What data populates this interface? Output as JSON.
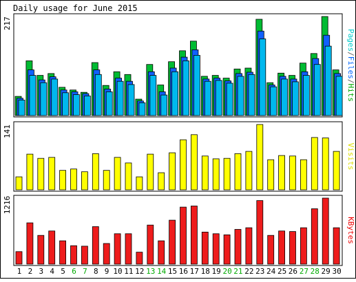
{
  "chart_data": {
    "type": "bar",
    "title": "Daily usage for June 2015",
    "categories": [
      "1",
      "2",
      "3",
      "4",
      "5",
      "6",
      "7",
      "8",
      "9",
      "10",
      "11",
      "12",
      "13",
      "14",
      "15",
      "16",
      "17",
      "18",
      "19",
      "20",
      "21",
      "22",
      "23",
      "24",
      "25",
      "26",
      "27",
      "28",
      "29",
      "30"
    ],
    "weekend_days": [
      "6",
      "7",
      "13",
      "14",
      "20",
      "21",
      "27",
      "28"
    ],
    "panels": [
      {
        "id": "pages-files-hits",
        "ylabel_parts": [
          {
            "text": "Pages",
            "color": "#00cccc"
          },
          {
            "text": "/",
            "color": "#666666"
          },
          {
            "text": "Files",
            "color": "#0066ff"
          },
          {
            "text": "/",
            "color": "#666666"
          },
          {
            "text": "Hits",
            "color": "#00aa00"
          }
        ],
        "ymax_label": "217",
        "ymax": 217,
        "series": [
          {
            "name": "Hits",
            "color": "#00bb33",
            "values": [
              42,
              120,
              88,
              92,
              62,
              56,
              51,
              116,
              66,
              96,
              90,
              36,
              112,
              67,
              118,
              142,
              163,
              86,
              88,
              82,
              102,
              104,
              211,
              72,
              93,
              88,
              115,
              136,
              217,
              100
            ]
          },
          {
            "name": "Files",
            "color": "#1060ff",
            "values": [
              38,
              100,
              78,
              85,
              56,
              52,
              48,
              100,
              58,
              82,
              75,
              32,
              96,
              52,
              104,
              128,
              144,
              80,
              82,
              76,
              92,
              95,
              185,
              67,
              86,
              80,
              96,
              125,
              176,
              92
            ]
          },
          {
            "name": "Pages",
            "color": "#00b8ee",
            "values": [
              34,
              88,
              72,
              80,
              50,
              46,
              43,
              90,
              52,
              75,
              68,
              28,
              88,
              45,
              96,
              120,
              132,
              75,
              77,
              71,
              86,
              90,
              168,
              63,
              80,
              74,
              88,
              112,
              152,
              86
            ]
          }
        ]
      },
      {
        "id": "visits",
        "ylabel_parts": [
          {
            "text": "Visits",
            "color": "#dddd00"
          }
        ],
        "ymax_label": "141",
        "ymax": 141,
        "series": [
          {
            "name": "Visits",
            "color": "#ffff00",
            "values": [
              28,
              77,
              68,
              70,
              42,
              45,
              39,
              78,
              42,
              70,
              58,
              28,
              77,
              37,
              80,
              108,
              119,
              73,
              67,
              68,
              78,
              83,
              141,
              65,
              74,
              73,
              65,
              113,
              112,
              83
            ]
          }
        ]
      },
      {
        "id": "kbytes",
        "ylabel_parts": [
          {
            "text": "KBytes",
            "color": "#ee0000"
          }
        ],
        "ymax_label": "1216",
        "ymax": 1216,
        "series": [
          {
            "name": "KBytes",
            "color": "#ee1c1c",
            "values": [
              230,
              760,
              530,
              610,
              430,
              340,
              330,
              690,
              380,
              560,
              560,
              220,
              720,
              430,
              810,
              1050,
              1070,
              590,
              560,
              540,
              640,
              670,
              1170,
              530,
              610,
              600,
              670,
              1020,
              1216,
              670
            ]
          }
        ]
      }
    ]
  }
}
